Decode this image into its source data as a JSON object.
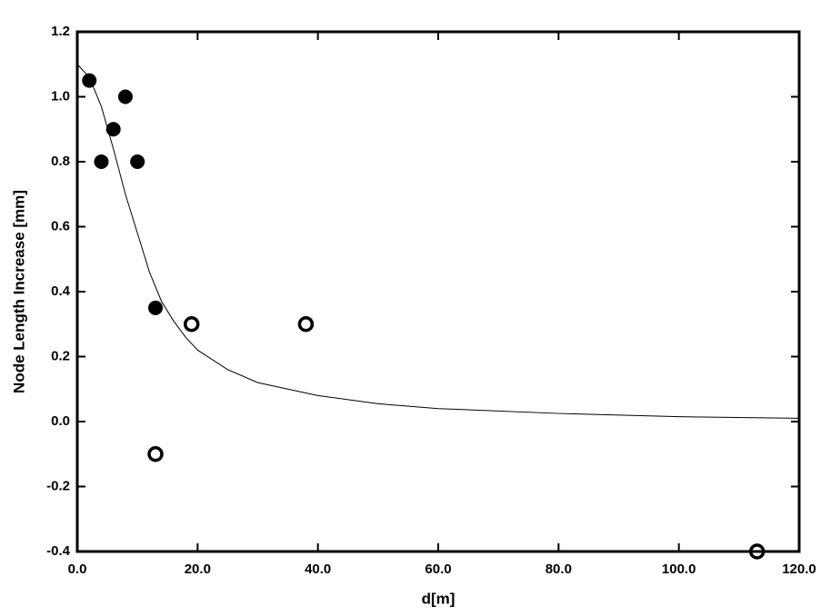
{
  "chart_data": {
    "type": "scatter",
    "x_label": "d[m]",
    "y_label": "Node Length Increase [mm]",
    "xlim": [
      0,
      120
    ],
    "ylim": [
      -0.4,
      1.2
    ],
    "xticks": [
      {
        "value": 0,
        "label": "0.0"
      },
      {
        "value": 20,
        "label": "20.0"
      },
      {
        "value": 40,
        "label": "40.0"
      },
      {
        "value": 60,
        "label": "60.0"
      },
      {
        "value": 80,
        "label": "80.0"
      },
      {
        "value": 100,
        "label": "100.0"
      },
      {
        "value": 120,
        "label": "120.0"
      }
    ],
    "yticks": [
      -0.4,
      -0.2,
      {
        "value": 0,
        "label": "0.0"
      },
      0.2,
      0.4,
      0.6,
      0.8,
      {
        "value": 1,
        "label": "1.0"
      },
      1.2
    ],
    "series": [
      {
        "marker": "filled",
        "color": "#000000",
        "x": [
          2,
          4,
          6,
          8,
          10,
          13
        ],
        "values": [
          1.05,
          0.8,
          0.9,
          1.0,
          0.8,
          0.35
        ]
      },
      {
        "marker": "open",
        "color": "#000000",
        "x": [
          13,
          19,
          38,
          113
        ],
        "values": [
          -0.1,
          0.3,
          0.3,
          -0.4
        ]
      },
      {
        "marker": "line",
        "color": "#000000",
        "x": [
          0,
          2,
          4,
          6,
          8,
          10,
          12,
          14,
          16,
          18,
          20,
          25,
          30,
          40,
          50,
          60,
          80,
          100,
          120
        ],
        "values": [
          1.1,
          1.06,
          0.97,
          0.84,
          0.7,
          0.58,
          0.46,
          0.37,
          0.31,
          0.26,
          0.22,
          0.16,
          0.12,
          0.08,
          0.055,
          0.04,
          0.025,
          0.015,
          0.01
        ]
      }
    ]
  }
}
